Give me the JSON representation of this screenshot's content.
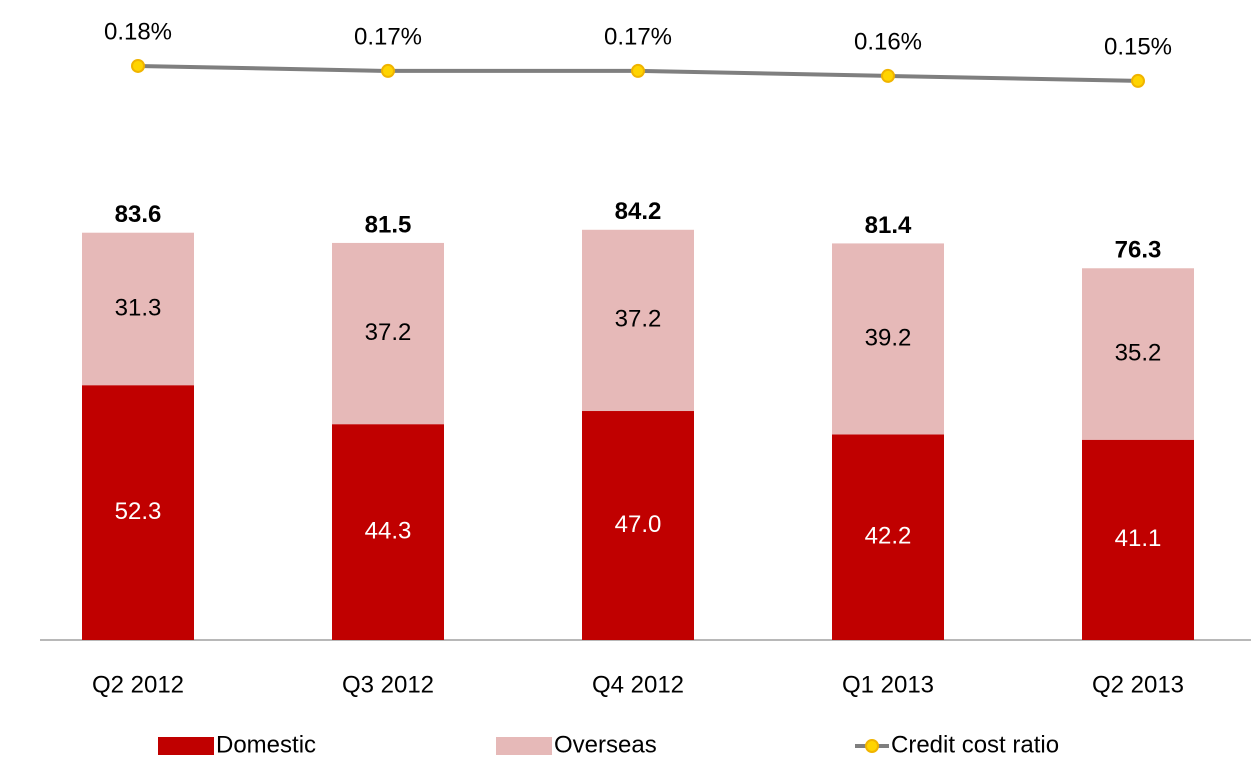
{
  "chart_data": {
    "type": "bar",
    "stacked": true,
    "categories": [
      "Q2 2012",
      "Q3 2012",
      "Q4 2012",
      "Q1 2013",
      "Q2 2013"
    ],
    "series": [
      {
        "name": "Domestic",
        "color": "#c00000",
        "values": [
          52.3,
          44.3,
          47.0,
          42.2,
          41.1
        ],
        "value_labels": [
          "52.3",
          "44.3",
          "47.0",
          "42.2",
          "41.1"
        ]
      },
      {
        "name": "Overseas",
        "color": "#e6b9b8",
        "values": [
          31.3,
          37.2,
          37.2,
          39.2,
          35.2
        ]
      },
      {
        "name": "Credit cost ratio",
        "type": "line",
        "axis": "y2",
        "color": "#7f7f7f",
        "marker_color": "#ffd400",
        "values": [
          0.18,
          0.17,
          0.17,
          0.16,
          0.15
        ],
        "value_labels": [
          "0.18%",
          "0.17%",
          "0.17%",
          "0.16%",
          "0.15%"
        ]
      }
    ],
    "totals": [
      83.6,
      81.5,
      84.2,
      81.4,
      76.3
    ],
    "ylim": [
      0,
      125
    ],
    "y2lim": [
      -0.97,
      0.25
    ],
    "legend": "bottom"
  }
}
